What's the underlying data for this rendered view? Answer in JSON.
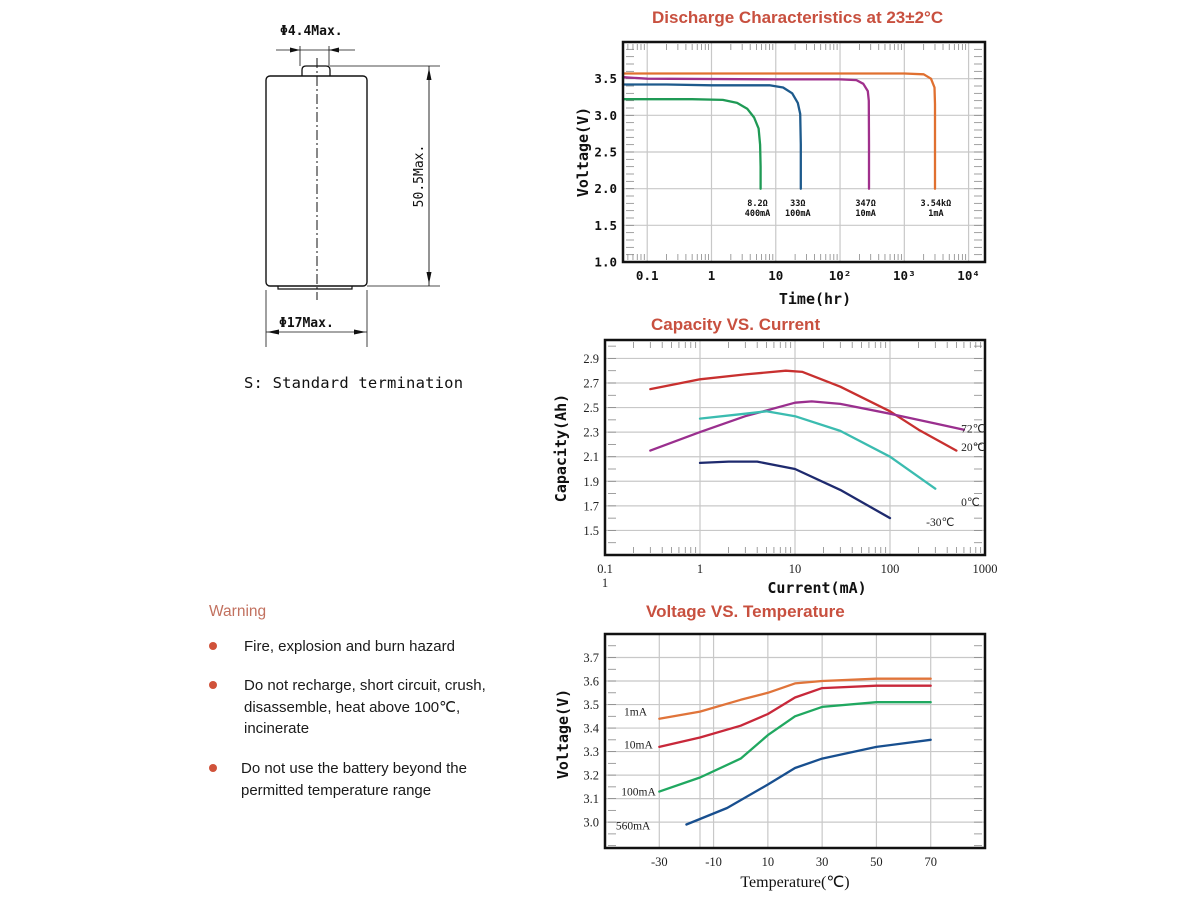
{
  "drawing": {
    "terminal_diameter": "Φ4.4Max.",
    "height_dim": "50.5Max.",
    "body_diameter": "Φ17Max.",
    "termination_note": "S: Standard termination"
  },
  "warning": {
    "title": "Warning",
    "items": [
      "Fire, explosion and burn hazard",
      "Do not recharge, short circuit, crush,\ndisassemble, heat above 100℃,\nincinerate",
      "Do not use the battery beyond the\npermitted temperature range"
    ],
    "bullet_color": "#d0523a"
  },
  "colors": {
    "title": "#c8503f",
    "grid": "#c8c8c8",
    "frame": "#111111"
  },
  "chart_data": [
    {
      "id": "discharge",
      "type": "line",
      "title": "Discharge Characteristics at 23±2°C",
      "xlabel": "Time(hr)",
      "ylabel": "Voltage(V)",
      "xscale": "log",
      "xlim": [
        0.042,
        18000
      ],
      "ylim": [
        1.0,
        4.0
      ],
      "grid": true,
      "xticks": [
        {
          "value": 0.1,
          "label": "0.1"
        },
        {
          "value": 1,
          "label": "1"
        },
        {
          "value": 10,
          "label": "10"
        },
        {
          "value": 100,
          "label": "10²"
        },
        {
          "value": 1000,
          "label": "10³"
        },
        {
          "value": 10000,
          "label": "10⁴"
        }
      ],
      "yticks": [
        {
          "value": 3.5,
          "label": "3.5"
        },
        {
          "value": 3.0,
          "label": "3.0"
        },
        {
          "value": 2.5,
          "label": "2.5"
        },
        {
          "value": 2.0,
          "label": "2.0"
        },
        {
          "value": 1.5,
          "label": "1.5"
        },
        {
          "value": 1.0,
          "label": "1.0"
        }
      ],
      "series": [
        {
          "name": "8.2Ω 400mA",
          "label_line1": "8.2Ω",
          "label_line2": "400mA",
          "label_at": [
            5.2,
            1.82
          ],
          "color": "#1f9a55",
          "points": [
            [
              0.042,
              3.22
            ],
            [
              0.5,
              3.22
            ],
            [
              1.5,
              3.21
            ],
            [
              2.5,
              3.17
            ],
            [
              3.6,
              3.09
            ],
            [
              4.6,
              2.97
            ],
            [
              5.4,
              2.82
            ],
            [
              5.7,
              2.6
            ],
            [
              5.8,
              2.3
            ],
            [
              5.8,
              2.0
            ]
          ]
        },
        {
          "name": "33Ω 100mA",
          "label_line1": "33Ω",
          "label_line2": "100mA",
          "label_at": [
            22,
            1.82
          ],
          "color": "#1d5a8c",
          "points": [
            [
              0.042,
              3.42
            ],
            [
              0.2,
              3.42
            ],
            [
              1,
              3.41
            ],
            [
              8,
              3.41
            ],
            [
              13,
              3.38
            ],
            [
              18,
              3.3
            ],
            [
              22,
              3.17
            ],
            [
              24,
              3.02
            ],
            [
              24.5,
              2.6
            ],
            [
              24.5,
              2.0
            ]
          ]
        },
        {
          "name": "347Ω 10mA",
          "label_line1": "347Ω",
          "label_line2": "10mA",
          "label_at": [
            250,
            1.82
          ],
          "color": "#a0308c",
          "points": [
            [
              0.042,
              3.52
            ],
            [
              0.1,
              3.5
            ],
            [
              10,
              3.49
            ],
            [
              100,
              3.49
            ],
            [
              180,
              3.48
            ],
            [
              230,
              3.43
            ],
            [
              270,
              3.33
            ],
            [
              280,
              3.2
            ],
            [
              282,
              2.6
            ],
            [
              282,
              2.0
            ]
          ]
        },
        {
          "name": "3.54kΩ 1mA",
          "label_line1": "3.54kΩ",
          "label_line2": "1mA",
          "label_at": [
            3100,
            1.82
          ],
          "color": "#e07030",
          "points": [
            [
              0.042,
              3.57
            ],
            [
              100,
              3.57
            ],
            [
              1000,
              3.57
            ],
            [
              2000,
              3.56
            ],
            [
              2600,
              3.5
            ],
            [
              2950,
              3.38
            ],
            [
              3000,
              3.15
            ],
            [
              3000,
              2.6
            ],
            [
              3000,
              2.0
            ]
          ]
        }
      ]
    },
    {
      "id": "capacity",
      "type": "line",
      "title": "Capacity VS. Current",
      "xlabel": "Current(mA)",
      "ylabel": "Capacity(Ah)",
      "xscale": "log",
      "xlim": [
        0.1,
        1000
      ],
      "ylim": [
        1.3,
        3.05
      ],
      "grid": true,
      "xticks": [
        {
          "value": 0.1,
          "label": "0.1"
        },
        {
          "value": 1,
          "label": "1"
        },
        {
          "value": 10,
          "label": "10"
        },
        {
          "value": 100,
          "label": "100"
        },
        {
          "value": 1000,
          "label": "1000"
        }
      ],
      "x_extra_label": "1",
      "yticks": [
        {
          "value": 2.9,
          "label": "2.9"
        },
        {
          "value": 2.7,
          "label": "2.7"
        },
        {
          "value": 2.5,
          "label": "2.5"
        },
        {
          "value": 2.3,
          "label": "2.3"
        },
        {
          "value": 2.1,
          "label": "2.1"
        },
        {
          "value": 1.9,
          "label": "1.9"
        },
        {
          "value": 1.7,
          "label": "1.7"
        },
        {
          "value": 1.5,
          "label": "1.5"
        }
      ],
      "series": [
        {
          "name": "20℃",
          "color": "#c8302f",
          "label_at": [
            560,
            2.18
          ],
          "points": [
            [
              0.3,
              2.65
            ],
            [
              1,
              2.73
            ],
            [
              3,
              2.77
            ],
            [
              8,
              2.8
            ],
            [
              12,
              2.79
            ],
            [
              30,
              2.67
            ],
            [
              100,
              2.47
            ],
            [
              200,
              2.32
            ],
            [
              500,
              2.15
            ]
          ]
        },
        {
          "name": "72℃",
          "color": "#9a2f8e",
          "label_at": [
            560,
            2.33
          ],
          "points": [
            [
              0.3,
              2.15
            ],
            [
              1,
              2.3
            ],
            [
              3,
              2.43
            ],
            [
              10,
              2.54
            ],
            [
              15,
              2.55
            ],
            [
              30,
              2.53
            ],
            [
              100,
              2.45
            ],
            [
              300,
              2.37
            ],
            [
              600,
              2.32
            ]
          ]
        },
        {
          "name": "0℃",
          "color": "#3bbcb0",
          "label_at": [
            560,
            1.73
          ],
          "points": [
            [
              1,
              2.41
            ],
            [
              3,
              2.45
            ],
            [
              5,
              2.47
            ],
            [
              10,
              2.43
            ],
            [
              30,
              2.31
            ],
            [
              100,
              2.1
            ],
            [
              300,
              1.84
            ]
          ]
        },
        {
          "name": "-30℃",
          "color": "#1e2a6e",
          "label_at": [
            240,
            1.57
          ],
          "points": [
            [
              1,
              2.05
            ],
            [
              2,
              2.06
            ],
            [
              4,
              2.06
            ],
            [
              10,
              2.0
            ],
            [
              30,
              1.83
            ],
            [
              100,
              1.6
            ]
          ]
        }
      ]
    },
    {
      "id": "voltage_temp",
      "type": "line",
      "title": "Voltage VS. Temperature",
      "xlabel": "Temperature(℃)",
      "ylabel": "Voltage(V)",
      "xscale": "linear",
      "xlim": [
        -50,
        90
      ],
      "ylim": [
        2.89,
        3.8
      ],
      "grid": true,
      "xticks": [
        {
          "value": -30,
          "label": "-30"
        },
        {
          "value": -10,
          "label": "-10"
        },
        {
          "value": 10,
          "label": "10"
        },
        {
          "value": 30,
          "label": "30"
        },
        {
          "value": 50,
          "label": "50"
        },
        {
          "value": 70,
          "label": "70"
        }
      ],
      "yticks": [
        {
          "value": 3.7,
          "label": "3.7"
        },
        {
          "value": 3.6,
          "label": "3.6"
        },
        {
          "value": 3.5,
          "label": "3.5"
        },
        {
          "value": 3.4,
          "label": "3.4"
        },
        {
          "value": 3.3,
          "label": "3.3"
        },
        {
          "value": 3.2,
          "label": "3.2"
        },
        {
          "value": 3.1,
          "label": "3.1"
        },
        {
          "value": 3.0,
          "label": "3.0"
        }
      ],
      "series": [
        {
          "name": "1mA",
          "color": "#e0743a",
          "label_at": [
            -43,
            3.47
          ],
          "points": [
            [
              -30,
              3.44
            ],
            [
              -15,
              3.47
            ],
            [
              0,
              3.52
            ],
            [
              10,
              3.55
            ],
            [
              20,
              3.59
            ],
            [
              30,
              3.6
            ],
            [
              50,
              3.61
            ],
            [
              70,
              3.61
            ]
          ]
        },
        {
          "name": "10mA",
          "color": "#c8283a",
          "label_at": [
            -43,
            3.33
          ],
          "points": [
            [
              -30,
              3.32
            ],
            [
              -15,
              3.36
            ],
            [
              0,
              3.41
            ],
            [
              10,
              3.46
            ],
            [
              20,
              3.53
            ],
            [
              30,
              3.57
            ],
            [
              50,
              3.58
            ],
            [
              70,
              3.58
            ]
          ]
        },
        {
          "name": "100mA",
          "color": "#20a860",
          "label_at": [
            -44,
            3.13
          ],
          "points": [
            [
              -30,
              3.13
            ],
            [
              -15,
              3.19
            ],
            [
              0,
              3.27
            ],
            [
              10,
              3.37
            ],
            [
              20,
              3.45
            ],
            [
              30,
              3.49
            ],
            [
              50,
              3.51
            ],
            [
              70,
              3.51
            ]
          ]
        },
        {
          "name": "560mA",
          "color": "#184f8f",
          "label_at": [
            -46,
            2.985
          ],
          "points": [
            [
              -20,
              2.99
            ],
            [
              -5,
              3.06
            ],
            [
              10,
              3.16
            ],
            [
              20,
              3.23
            ],
            [
              30,
              3.27
            ],
            [
              50,
              3.32
            ],
            [
              70,
              3.35
            ]
          ]
        }
      ]
    }
  ]
}
